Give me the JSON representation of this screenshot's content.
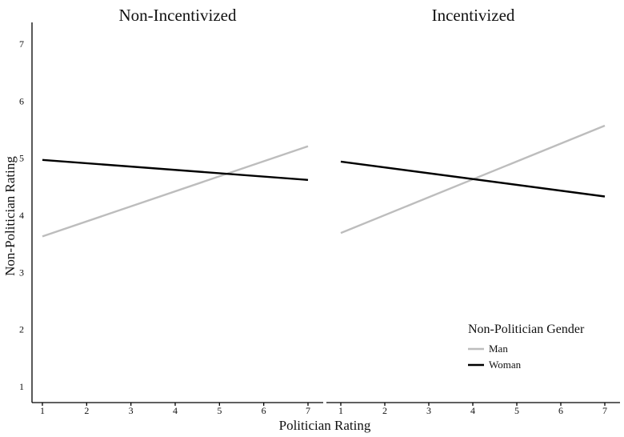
{
  "chart_data": {
    "type": "line",
    "xlabel": "Politician Rating",
    "ylabel": "Non-Politician Rating",
    "xlim": [
      1,
      7
    ],
    "ylim": [
      1,
      7
    ],
    "x_ticks": [
      1,
      2,
      3,
      4,
      5,
      6,
      7
    ],
    "y_ticks": [
      1,
      2,
      3,
      4,
      5,
      6,
      7
    ],
    "grid": false,
    "legend": {
      "title": "Non-Politician Gender",
      "placement": "bottom-right",
      "entries": [
        "Man",
        "Woman"
      ]
    },
    "panels": [
      {
        "title": "Non-Incentivized",
        "series": [
          {
            "name": "Man",
            "color": "#bdbdbd",
            "x": [
              1,
              7
            ],
            "y": [
              3.63,
              5.21
            ]
          },
          {
            "name": "Woman",
            "color": "#000000",
            "x": [
              1,
              7
            ],
            "y": [
              4.97,
              4.62
            ]
          }
        ]
      },
      {
        "title": "Incentivized",
        "series": [
          {
            "name": "Man",
            "color": "#bdbdbd",
            "x": [
              1,
              7
            ],
            "y": [
              3.69,
              5.57
            ]
          },
          {
            "name": "Woman",
            "color": "#000000",
            "x": [
              1,
              7
            ],
            "y": [
              4.94,
              4.33
            ]
          }
        ]
      }
    ]
  }
}
